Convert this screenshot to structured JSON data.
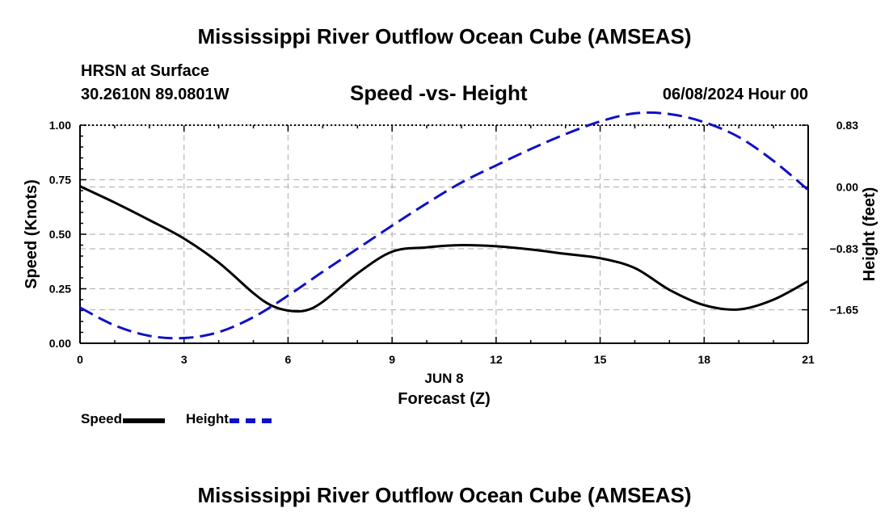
{
  "page": {
    "title_top": "Mississippi River Outflow Ocean Cube (AMSEAS)",
    "title_bottom": "Mississippi River Outflow Ocean Cube (AMSEAS)",
    "location_label": "HRSN at Surface",
    "coordinates": "30.2610N  89.0801W",
    "subtitle": "Speed -vs- Height",
    "datetime": "06/08/2024 Hour 00"
  },
  "chart_data": {
    "type": "line",
    "title": "Speed -vs- Height",
    "xlabel": "Forecast (Z)",
    "xlabel_date": "JUN 8",
    "ylabel": "Speed (Knots)",
    "y2label": "Height (feet)",
    "xlim": [
      0,
      21
    ],
    "ylim": [
      0,
      1
    ],
    "y2lim": [
      -2.1,
      0.83
    ],
    "x_ticks": [
      "0",
      "3",
      "6",
      "9",
      "12",
      "15",
      "18",
      "21"
    ],
    "y_ticks": [
      "0.00",
      "0.25",
      "0.50",
      "0.75",
      "1.00"
    ],
    "y2_ticks": [
      "0.83",
      "0.00",
      "−0.83",
      "−1.65"
    ],
    "y2_tick_values": [
      0.83,
      0.0,
      -0.83,
      -1.65
    ],
    "grid": true,
    "legend_position": "bottom-left",
    "series": [
      {
        "name": "Speed",
        "axis": "left",
        "color": "#000000",
        "style": "solid",
        "x": [
          0,
          1,
          2,
          3,
          4,
          5,
          5.5,
          6,
          6.5,
          7,
          8,
          9,
          10,
          11,
          12,
          13,
          14,
          15,
          16,
          17,
          18,
          19,
          20,
          21
        ],
        "values": [
          0.72,
          0.645,
          0.565,
          0.48,
          0.37,
          0.23,
          0.175,
          0.15,
          0.15,
          0.19,
          0.32,
          0.42,
          0.44,
          0.45,
          0.445,
          0.43,
          0.41,
          0.39,
          0.345,
          0.245,
          0.175,
          0.155,
          0.2,
          0.285
        ]
      },
      {
        "name": "Height",
        "axis": "right",
        "color": "#1010c8",
        "style": "dashed",
        "x": [
          0,
          1,
          2,
          3,
          4,
          5,
          6,
          7,
          8,
          9,
          10,
          11,
          12,
          13,
          14,
          15,
          16,
          17,
          18,
          19,
          20,
          21
        ],
        "values": [
          -1.62,
          -1.86,
          -2.0,
          -2.03,
          -1.95,
          -1.75,
          -1.46,
          -1.14,
          -0.83,
          -0.52,
          -0.22,
          0.06,
          0.29,
          0.51,
          0.71,
          0.88,
          0.99,
          0.98,
          0.87,
          0.67,
          0.35,
          -0.04
        ]
      }
    ]
  }
}
